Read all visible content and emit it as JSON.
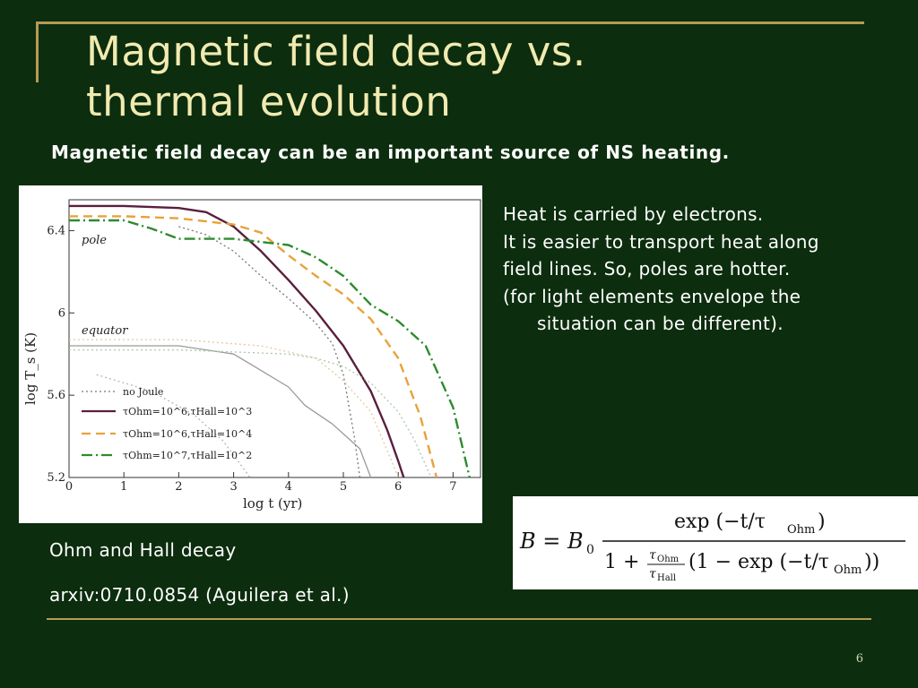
{
  "slide": {
    "title_line1": "Magnetic field decay vs.",
    "title_line2": "thermal evolution",
    "subtitle": "Magnetic field decay can be an important source of NS heating.",
    "notes": [
      "Heat is carried by electrons.",
      "It is easier to transport heat along",
      "field lines. So, poles are hotter.",
      "(for light elements envelope the",
      "situation can be different)."
    ],
    "caption_decay": "Ohm and Hall decay",
    "caption_ref": "arxiv:0710.0854 (Aguilera et al.)",
    "page_number": "6",
    "colors": {
      "background": "#0c2d0e",
      "title": "#f1eab0",
      "rule": "#b69a55"
    }
  },
  "chart_data": {
    "type": "line",
    "xlabel": "log t (yr)",
    "ylabel": "log T_s (K)",
    "xlim": [
      0,
      7.5
    ],
    "ylim": [
      5.2,
      6.55
    ],
    "x_ticks": [
      "0",
      "1",
      "2",
      "3",
      "4",
      "5",
      "6",
      "7"
    ],
    "y_ticks": [
      "5.2",
      "5.6",
      "6",
      "6.4"
    ],
    "annotations": [
      "pole",
      "equator"
    ],
    "legend": {
      "placement": "bottom-left",
      "entries": [
        "no Joule",
        "τOhm=10^6,τHall=10^3",
        "τOhm=10^6,τHall=10^4",
        "τOhm=10^7,τHall=10^2"
      ]
    },
    "series": [
      {
        "name": "no Joule",
        "region": "pole",
        "color": "#777777",
        "dash": "2 3",
        "x": [
          2.0,
          2.5,
          3.0,
          3.5,
          4.0,
          4.5,
          4.8,
          5.0,
          5.2,
          5.3
        ],
        "y": [
          6.42,
          6.38,
          6.3,
          6.18,
          6.07,
          5.95,
          5.85,
          5.7,
          5.4,
          5.2
        ]
      },
      {
        "name": "τOhm=10^6,τHall=10^3",
        "region": "pole",
        "color": "#5a1f3d",
        "dash": "",
        "x": [
          0,
          1,
          2,
          2.5,
          3,
          3.5,
          4,
          4.5,
          5,
          5.5,
          5.8,
          6.0,
          6.1
        ],
        "y": [
          6.52,
          6.52,
          6.51,
          6.49,
          6.42,
          6.3,
          6.16,
          6.01,
          5.84,
          5.62,
          5.43,
          5.28,
          5.2
        ]
      },
      {
        "name": "τOhm=10^6,τHall=10^4",
        "region": "pole",
        "color": "#e8a23a",
        "dash": "10 6",
        "x": [
          0,
          1,
          2,
          3,
          3.5,
          4,
          4.5,
          5,
          5.5,
          6,
          6.4,
          6.7
        ],
        "y": [
          6.47,
          6.47,
          6.46,
          6.43,
          6.39,
          6.28,
          6.18,
          6.09,
          5.97,
          5.78,
          5.5,
          5.2
        ]
      },
      {
        "name": "τOhm=10^7,τHall=10^2",
        "region": "pole",
        "color": "#2e8b2e",
        "dash": "12 4 2 4",
        "x": [
          0,
          1,
          1.5,
          2,
          3,
          4,
          4.5,
          5,
          5.5,
          6,
          6.5,
          7,
          7.3
        ],
        "y": [
          6.45,
          6.45,
          6.41,
          6.36,
          6.36,
          6.33,
          6.27,
          6.18,
          6.04,
          5.96,
          5.84,
          5.54,
          5.2
        ]
      },
      {
        "name": "no Joule",
        "region": "equator",
        "color": "#b5b5b5",
        "dash": "2 3",
        "x": [
          0.5,
          1.5,
          2.3,
          2.8,
          3.3
        ],
        "y": [
          5.7,
          5.62,
          5.5,
          5.38,
          5.2
        ]
      },
      {
        "name": "τOhm=10^6,τHall=10^3",
        "region": "equator",
        "color": "#9a9a9a",
        "dash": "",
        "x": [
          0,
          2,
          3,
          3.5,
          4,
          4.3,
          4.8,
          5.3,
          5.5
        ],
        "y": [
          5.84,
          5.84,
          5.8,
          5.72,
          5.64,
          5.55,
          5.46,
          5.34,
          5.2
        ]
      },
      {
        "name": "τOhm=10^6,τHall=10^4",
        "region": "equator",
        "color": "#e6c7a2",
        "dash": "2 3",
        "x": [
          0,
          2,
          3.5,
          4.5,
          5.0,
          5.5,
          5.8,
          6.0
        ],
        "y": [
          5.87,
          5.87,
          5.84,
          5.78,
          5.67,
          5.52,
          5.33,
          5.2
        ]
      },
      {
        "name": "τOhm=10^7,τHall=10^2",
        "region": "equator",
        "color": "#a9c9a9",
        "dash": "2 3",
        "x": [
          0,
          2,
          3,
          4,
          4.5,
          5,
          5.5,
          6,
          6.3,
          6.6
        ],
        "y": [
          5.82,
          5.82,
          5.81,
          5.8,
          5.78,
          5.74,
          5.66,
          5.52,
          5.38,
          5.2
        ]
      }
    ]
  },
  "formula": {
    "lhs": "B = B",
    "sub0": "0",
    "numerator": "exp (−t/τ",
    "num_sub": "Ohm",
    "num_close": ")",
    "den_a": "1 +",
    "frac_top": "τ",
    "frac_top_sub": "Ohm",
    "frac_bot": "τ",
    "frac_bot_sub": "Hall",
    "den_b": "(1 − exp (−t/τ",
    "den_sub": "Ohm",
    "den_close": "))"
  }
}
